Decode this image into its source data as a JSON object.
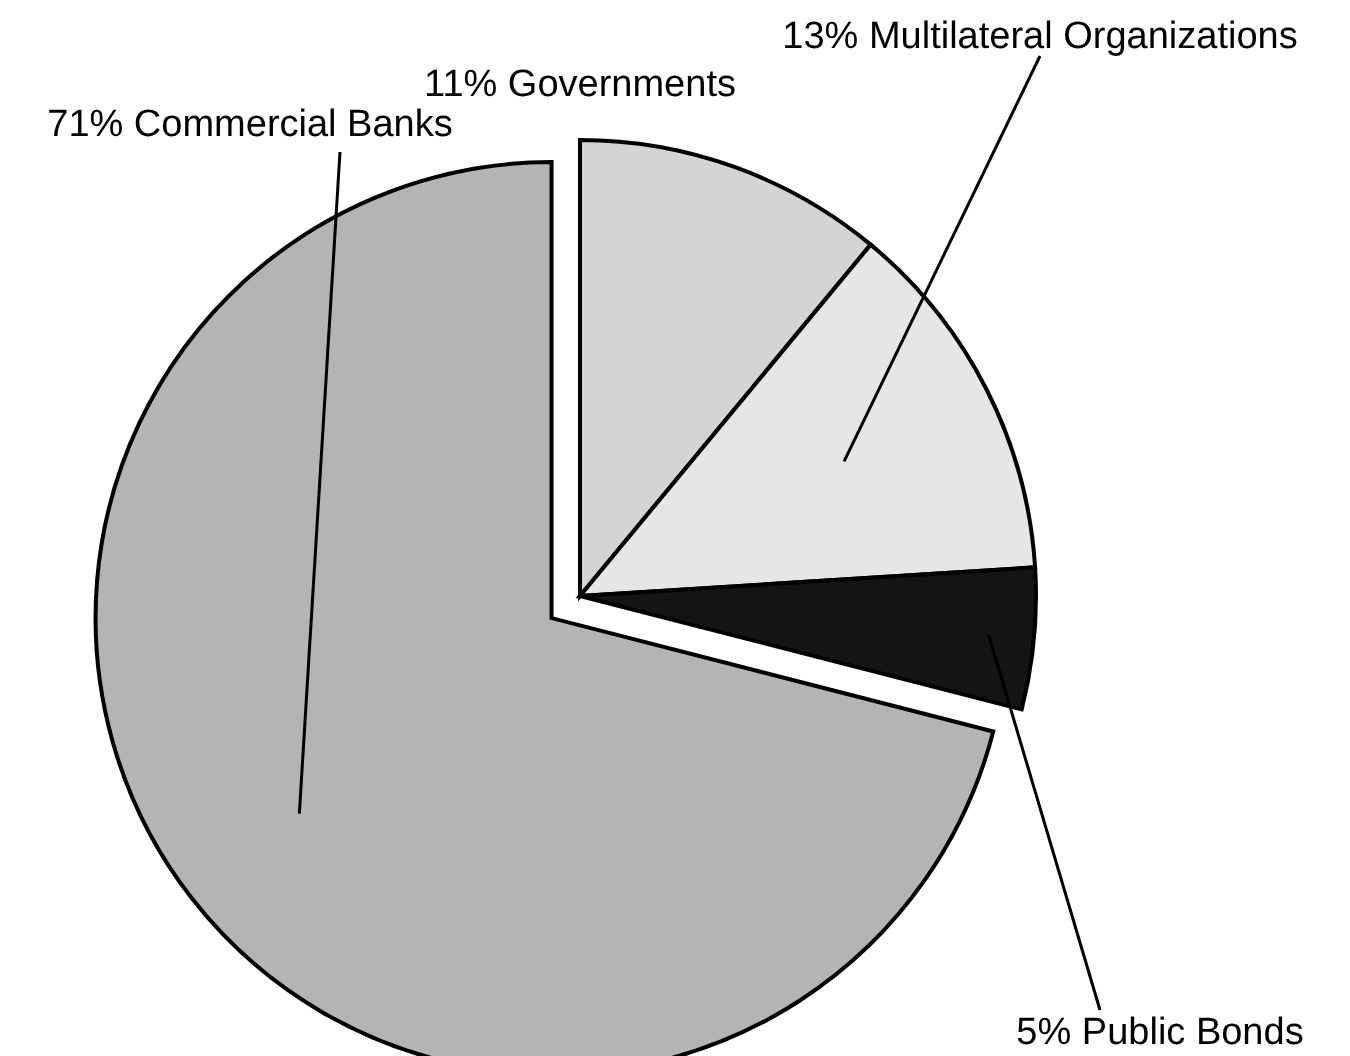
{
  "chart_data": {
    "type": "pie",
    "categories": [
      "11% Governments",
      "13% Multilateral Organizations",
      "5% Public Bonds",
      "71% Commercial Banks"
    ],
    "values": [
      11,
      13,
      5,
      71
    ],
    "colors": [
      "#d4d4d4",
      "#e6e6e6",
      "#141414",
      "#b4b4b4"
    ]
  }
}
